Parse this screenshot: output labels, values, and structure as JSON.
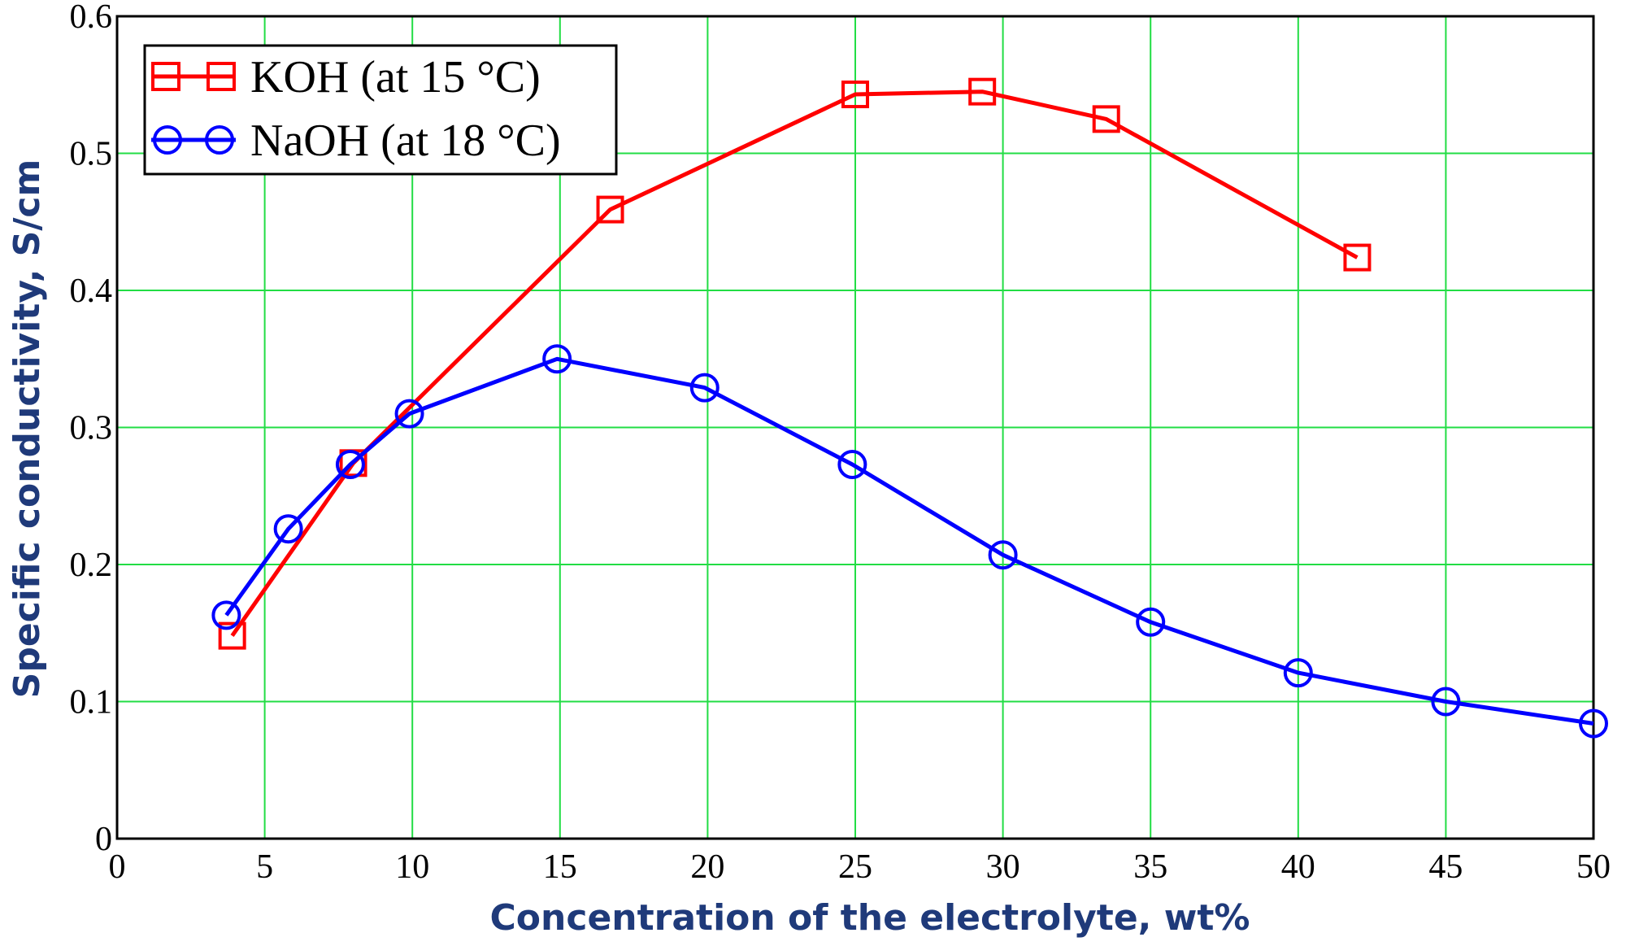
{
  "chart_data": {
    "type": "line",
    "xlabel": "Concentration of the electrolyte, wt%",
    "ylabel": "Specific conductivity, S/cm",
    "xlim": [
      0,
      50
    ],
    "ylim": [
      0,
      0.6
    ],
    "x_ticks": [
      0,
      5,
      10,
      15,
      20,
      25,
      30,
      35,
      40,
      45,
      50
    ],
    "y_ticks": [
      0,
      0.1,
      0.2,
      0.3,
      0.4,
      0.5,
      0.6
    ],
    "x_tick_labels": [
      "0",
      "5",
      "10",
      "15",
      "20",
      "25",
      "30",
      "35",
      "40",
      "45",
      "50"
    ],
    "y_tick_labels": [
      "0",
      "0.1",
      "0.2",
      "0.3",
      "0.4",
      "0.5",
      "0.6"
    ],
    "grid": true,
    "legend_position": "top-left",
    "label_color": "#1f3a7a",
    "series": [
      {
        "name": "KOH (at 15 °C)",
        "marker": "square",
        "color": "#ff0000",
        "x": [
          3.9,
          8.0,
          16.7,
          25.0,
          29.3,
          33.5,
          42.0
        ],
        "y": [
          0.148,
          0.274,
          0.459,
          0.543,
          0.545,
          0.525,
          0.424
        ]
      },
      {
        "name": "NaOH (at 18 °C)",
        "marker": "circle",
        "color": "#0000ff",
        "x": [
          3.7,
          5.8,
          7.9,
          9.9,
          14.9,
          19.9,
          24.9,
          30.0,
          35.0,
          40.0,
          45.0,
          50.0
        ],
        "y": [
          0.163,
          0.226,
          0.273,
          0.31,
          0.35,
          0.329,
          0.273,
          0.207,
          0.158,
          0.121,
          0.1,
          0.084
        ]
      }
    ]
  }
}
